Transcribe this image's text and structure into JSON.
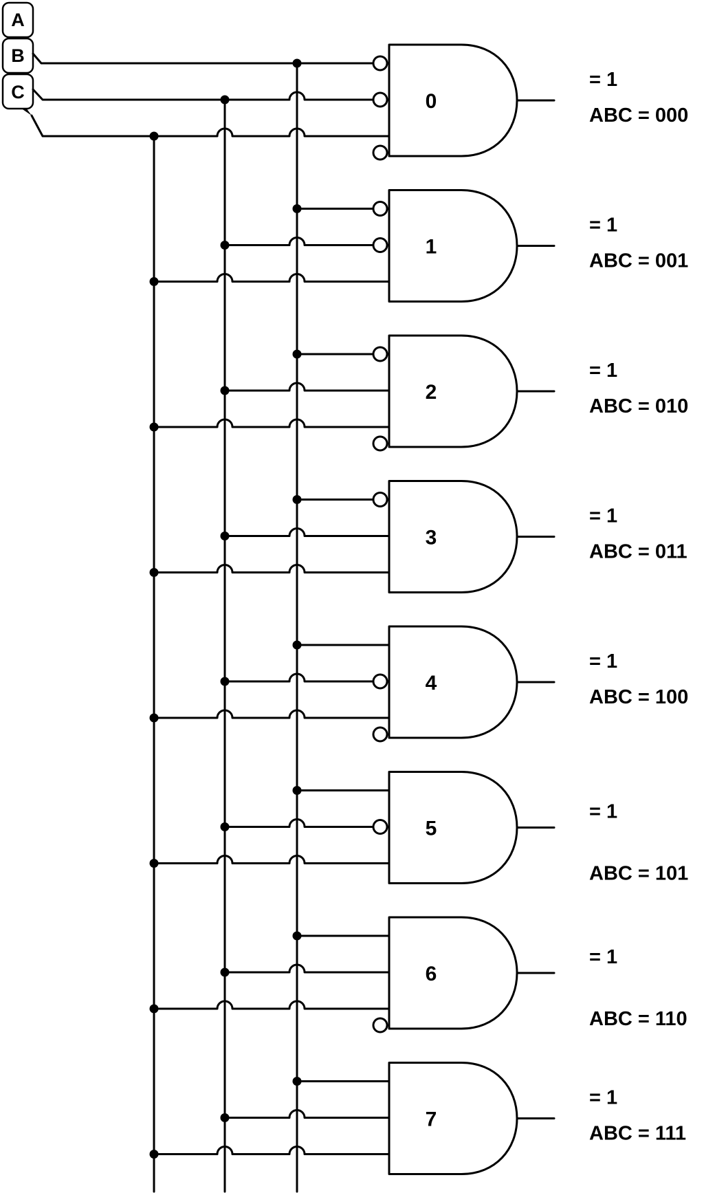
{
  "inputs": [
    {
      "label": "A"
    },
    {
      "label": "B"
    },
    {
      "label": "C"
    }
  ],
  "gates": [
    {
      "number": "0",
      "inverted": [
        true,
        true,
        true
      ],
      "output_line1": "= 1",
      "output_line2": "ABC = 000"
    },
    {
      "number": "1",
      "inverted": [
        true,
        true,
        false
      ],
      "output_line1": "= 1",
      "output_line2": "ABC = 001"
    },
    {
      "number": "2",
      "inverted": [
        true,
        false,
        true
      ],
      "output_line1": "= 1",
      "output_line2": "ABC = 010"
    },
    {
      "number": "3",
      "inverted": [
        true,
        false,
        false
      ],
      "output_line1": "= 1",
      "output_line2": "ABC = 011"
    },
    {
      "number": "4",
      "inverted": [
        false,
        true,
        true
      ],
      "output_line1": "= 1",
      "output_line2": "ABC = 100"
    },
    {
      "number": "5",
      "inverted": [
        false,
        true,
        false
      ],
      "output_line1": "= 1",
      "output_line2": "ABC = 101"
    },
    {
      "number": "6",
      "inverted": [
        false,
        false,
        true
      ],
      "output_line1": "= 1",
      "output_line2": "ABC = 110"
    },
    {
      "number": "7",
      "inverted": [
        false,
        false,
        false
      ],
      "output_line1": "= 1",
      "output_line2": "ABC = 111"
    }
  ]
}
